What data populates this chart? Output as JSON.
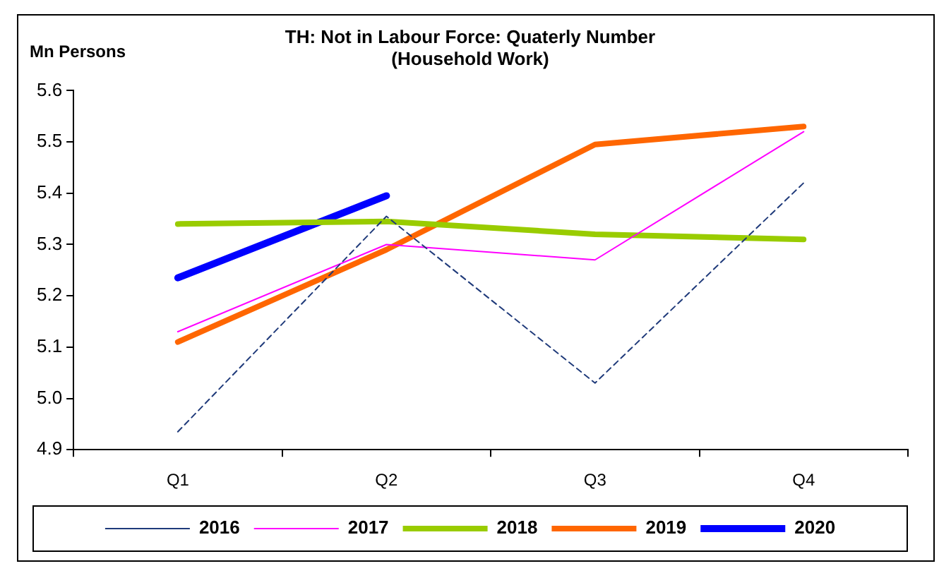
{
  "chart_data": {
    "type": "line",
    "title": "TH: Not in Labour Force: Quaterly Number\n(Household Work)",
    "ylabel": "Mn Persons",
    "categories": [
      "Q1",
      "Q2",
      "Q3",
      "Q4"
    ],
    "series": [
      {
        "name": "2016",
        "color": "#1f3a7a",
        "values": [
          4.935,
          5.355,
          5.03,
          5.42
        ],
        "line_style": "dashed"
      },
      {
        "name": "2017",
        "color": "#ff00ff",
        "values": [
          5.13,
          5.3,
          5.27,
          5.52
        ]
      },
      {
        "name": "2018",
        "color": "#99cc00",
        "values": [
          5.34,
          5.345,
          5.32,
          5.31
        ]
      },
      {
        "name": "2019",
        "color": "#ff6600",
        "values": [
          5.11,
          5.29,
          5.495,
          5.53
        ]
      },
      {
        "name": "2020",
        "color": "#0000ff",
        "values": [
          5.235,
          5.395,
          null,
          null
        ]
      }
    ],
    "ylim": [
      4.9,
      5.6
    ],
    "yticks": [
      4.9,
      {
        "value": 5,
        "label": "5.0"
      },
      5.1,
      5.2,
      5.3,
      5.4,
      5.5,
      {
        "value": 5.6,
        "label": "5.6"
      }
    ],
    "grid": false,
    "legend": "bottom",
    "marker": "none"
  }
}
